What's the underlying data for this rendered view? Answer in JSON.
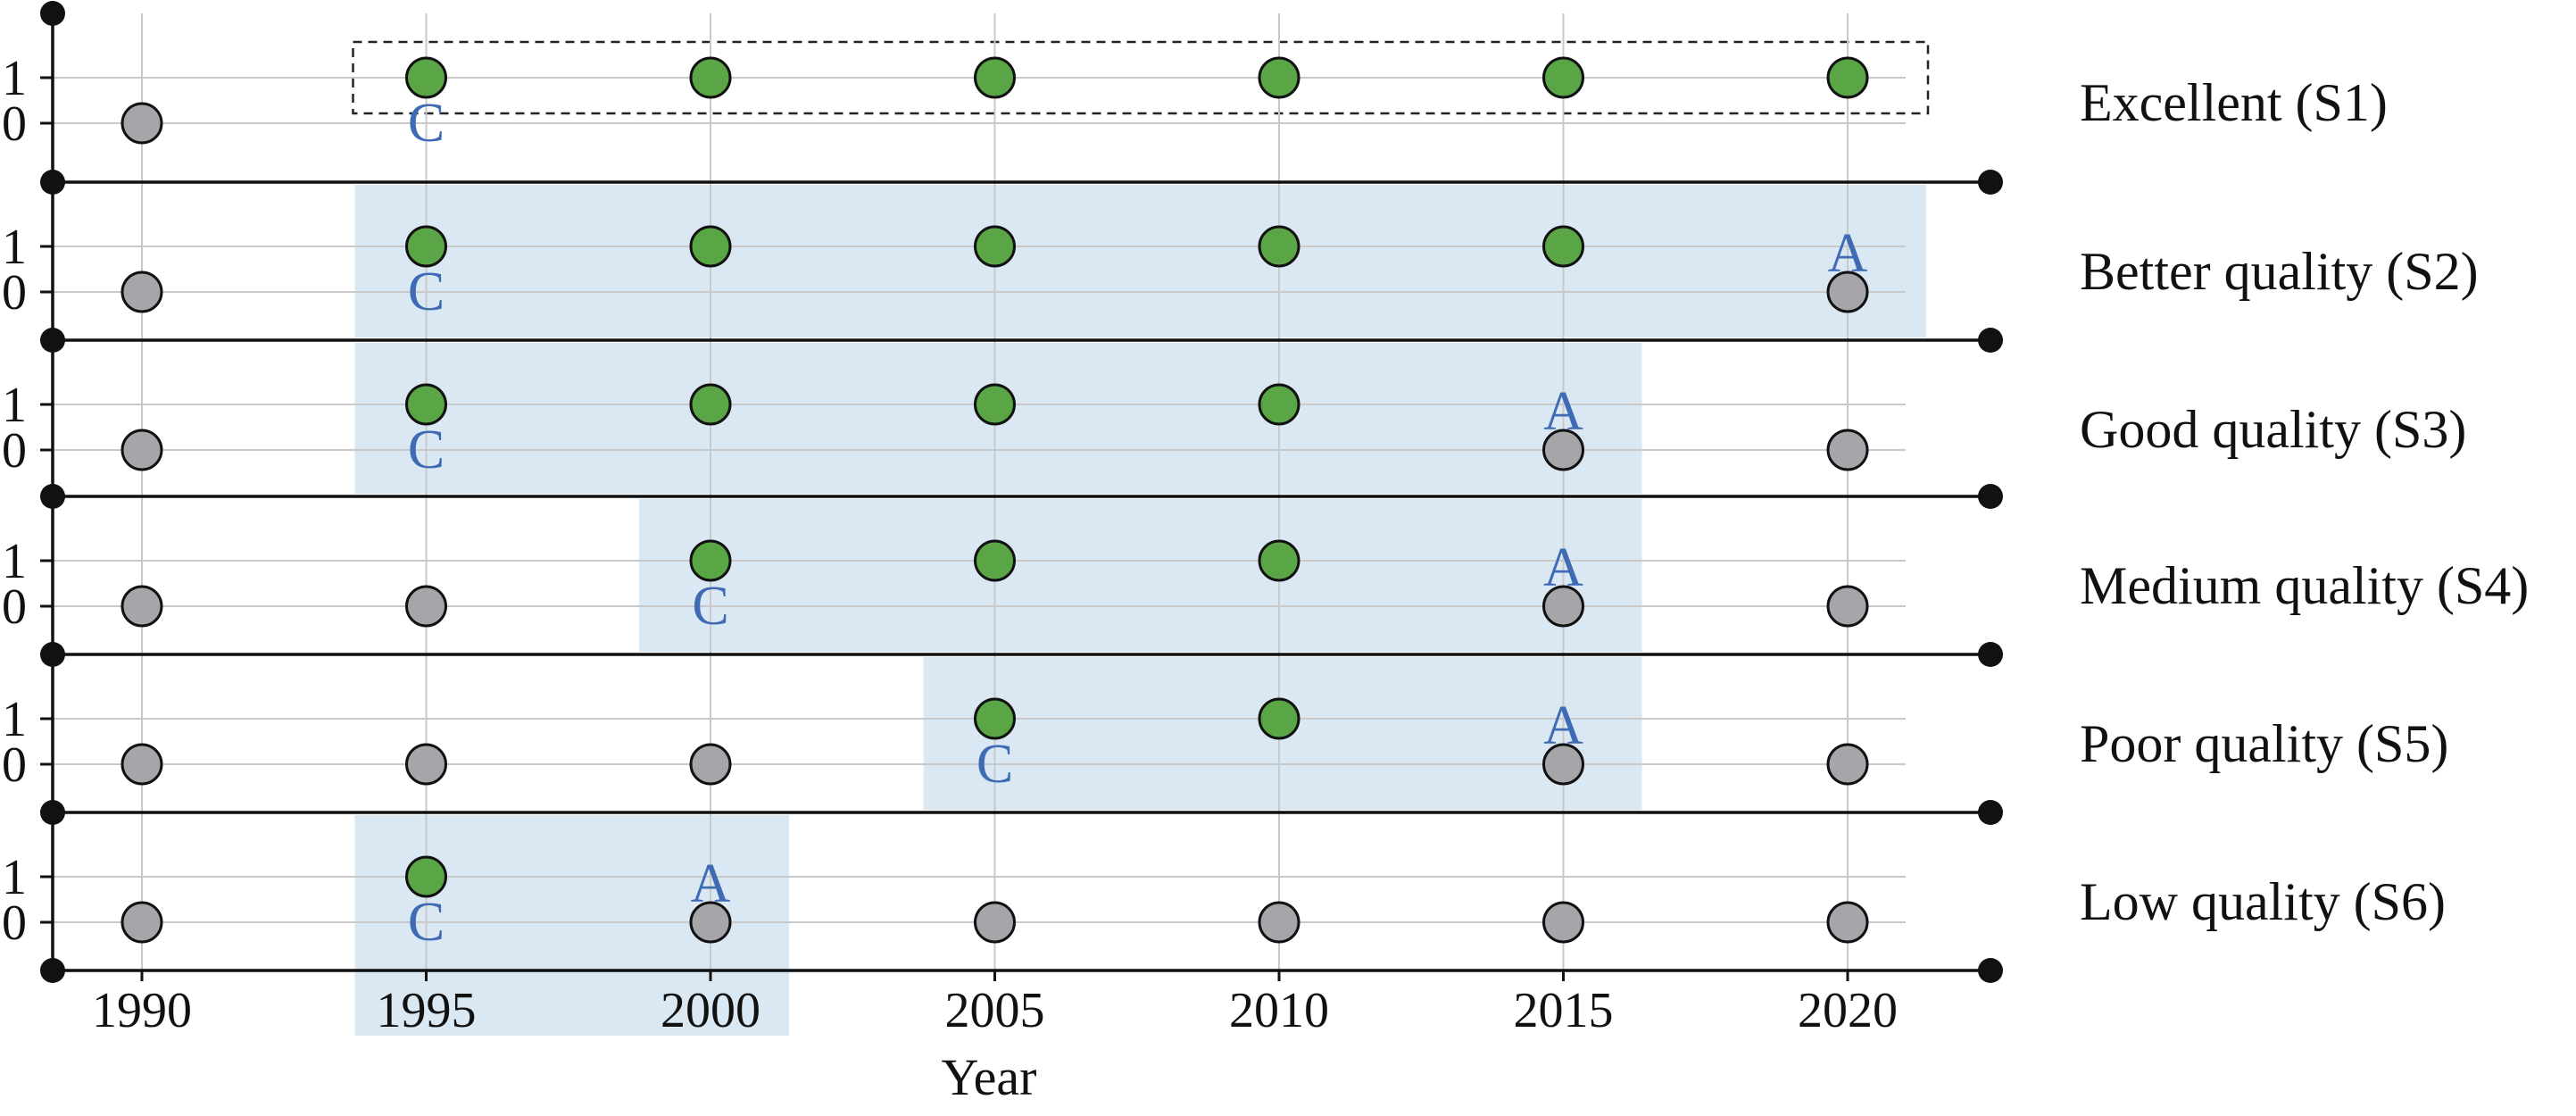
{
  "chart_data": {
    "type": "scatter",
    "xlabel": "Year",
    "x_ticks": [
      1990,
      1995,
      2000,
      2005,
      2010,
      2015,
      2020
    ],
    "y_ticks": [
      "0",
      "1"
    ],
    "colors": {
      "active": "#5aa646",
      "inactive": "#a6a5aa",
      "shade": "#d9e8f2",
      "marker_text": "#3f6bb4",
      "grid": "#c9c9c9"
    },
    "panels": [
      {
        "label": "Excellent (S1)",
        "values": [
          0,
          1,
          1,
          1,
          1,
          1,
          1
        ],
        "span": [
          1995,
          2020
        ],
        "span_style": "dashed-box",
        "markers": [
          {
            "year": 1995,
            "text": "C"
          }
        ]
      },
      {
        "label": "Better quality (S2)",
        "values": [
          0,
          1,
          1,
          1,
          1,
          1,
          0
        ],
        "span": [
          1995,
          2020
        ],
        "span_style": "shaded",
        "markers": [
          {
            "year": 1995,
            "text": "C"
          },
          {
            "year": 2020,
            "text": "A"
          }
        ]
      },
      {
        "label": "Good quality (S3)",
        "values": [
          0,
          1,
          1,
          1,
          1,
          0,
          0
        ],
        "span": [
          1995,
          2015
        ],
        "span_style": "shaded",
        "markers": [
          {
            "year": 1995,
            "text": "C"
          },
          {
            "year": 2015,
            "text": "A"
          }
        ]
      },
      {
        "label": "Medium quality (S4)",
        "values": [
          0,
          0,
          1,
          1,
          1,
          0,
          0
        ],
        "span": [
          2000,
          2015
        ],
        "span_style": "shaded",
        "markers": [
          {
            "year": 2000,
            "text": "C"
          },
          {
            "year": 2015,
            "text": "A"
          }
        ]
      },
      {
        "label": "Poor quality (S5)",
        "values": [
          0,
          0,
          0,
          1,
          1,
          0,
          0
        ],
        "span": [
          2005,
          2015
        ],
        "span_style": "shaded",
        "markers": [
          {
            "year": 2005,
            "text": "C"
          },
          {
            "year": 2015,
            "text": "A"
          }
        ]
      },
      {
        "label": "Low quality (S6)",
        "values": [
          0,
          1,
          0,
          0,
          0,
          0,
          0
        ],
        "span": [
          1995,
          2000
        ],
        "span_style": "shaded",
        "markers": [
          {
            "year": 1995,
            "text": "C"
          },
          {
            "year": 2000,
            "text": "A"
          }
        ]
      }
    ]
  }
}
